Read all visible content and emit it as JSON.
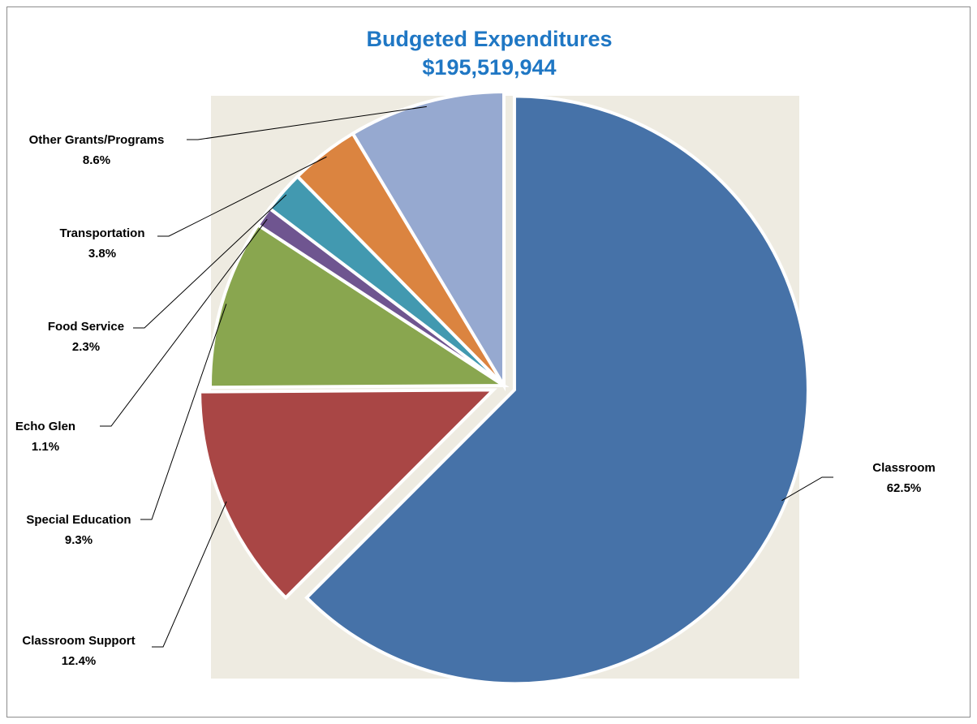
{
  "chart_data": {
    "type": "pie",
    "title": "Budgeted Expenditures",
    "subtitle": "$195,519,944",
    "plot_background": "#eeebe1",
    "slices": [
      {
        "name": "Classroom",
        "value": 62.5,
        "label": "62.5%",
        "color": "#4672a8"
      },
      {
        "name": "Classroom Support",
        "value": 12.4,
        "label": "12.4%",
        "color": "#a94645"
      },
      {
        "name": "Special Education",
        "value": 9.3,
        "label": "9.3%",
        "color": "#89a64f"
      },
      {
        "name": "Echo Glen",
        "value": 1.1,
        "label": "1.1%",
        "color": "#6f5590"
      },
      {
        "name": "Food Service",
        "value": 2.3,
        "label": "2.3%",
        "color": "#4299b0"
      },
      {
        "name": "Transportation",
        "value": 3.8,
        "label": "3.8%",
        "color": "#db8440"
      },
      {
        "name": "Other Grants/Programs",
        "value": 8.6,
        "label": "8.6%",
        "color": "#96a9d0"
      }
    ]
  }
}
